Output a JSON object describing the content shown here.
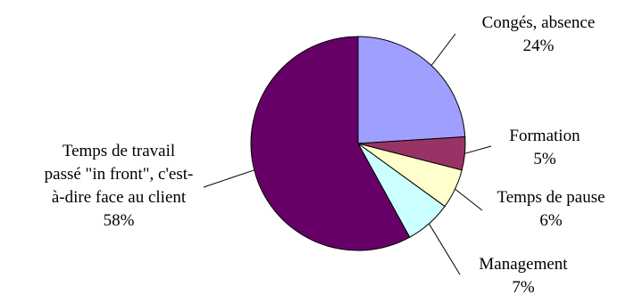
{
  "chart_data": {
    "type": "pie",
    "title": "",
    "slices": [
      {
        "lines": [
          "Congés, absence",
          "24%"
        ],
        "value": 24,
        "color": "#9f9fff"
      },
      {
        "lines": [
          "Formation",
          "5%"
        ],
        "value": 5,
        "color": "#993366"
      },
      {
        "lines": [
          "Temps de pause",
          "6%"
        ],
        "value": 6,
        "color": "#ffffcc"
      },
      {
        "lines": [
          "Management",
          "7%"
        ],
        "value": 7,
        "color": "#ccffff"
      },
      {
        "lines": [
          "Temps de travail",
          "passé \"in front\", c'est-",
          "à-dire face au client",
          "58%"
        ],
        "value": 58,
        "color": "#660066"
      }
    ],
    "start_angle_deg": 0,
    "direction": "clockwise",
    "legend": "none",
    "labels": "outside-with-leader-lines"
  }
}
